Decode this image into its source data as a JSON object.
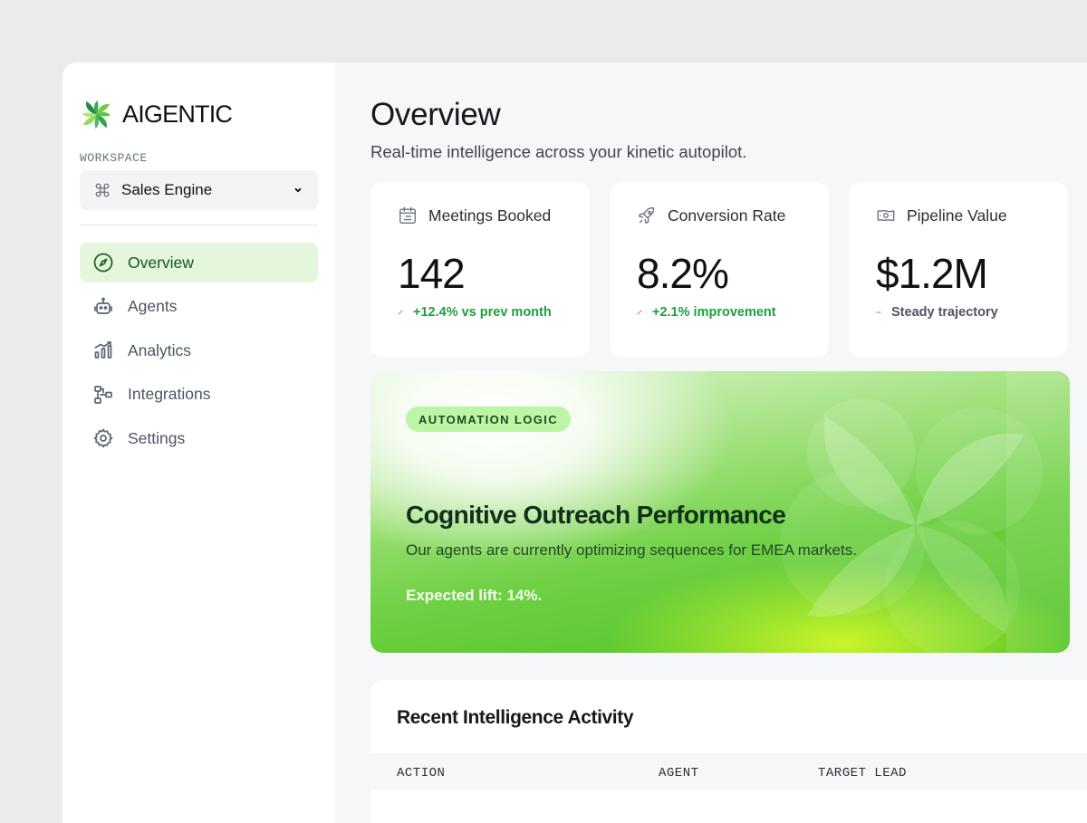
{
  "brand": {
    "name": "AIGENTIC",
    "logo_icon": "pinwheel-logo-icon"
  },
  "workspace": {
    "label": "WORKSPACE",
    "value": "Sales Engine",
    "icon": "command-icon"
  },
  "nav": [
    {
      "label": "Overview",
      "icon": "compass-icon",
      "active": true
    },
    {
      "label": "Agents",
      "icon": "robot-icon",
      "active": false
    },
    {
      "label": "Analytics",
      "icon": "bar-chart-icon",
      "active": false
    },
    {
      "label": "Integrations",
      "icon": "workflow-icon",
      "active": false
    },
    {
      "label": "Settings",
      "icon": "gear-icon",
      "active": false
    }
  ],
  "header": {
    "title": "Overview",
    "subtitle": "Real-time intelligence across your kinetic autopilot."
  },
  "stats": [
    {
      "label": "Meetings Booked",
      "icon": "calendar-icon",
      "value": "142",
      "delta": "+12.4% vs prev month",
      "trend": "up"
    },
    {
      "label": "Conversion Rate",
      "icon": "rocket-icon",
      "value": "8.2%",
      "delta": "+2.1% improvement",
      "trend": "up"
    },
    {
      "label": "Pipeline Value",
      "icon": "money-icon",
      "value": "$1.2M",
      "delta": "Steady trajectory",
      "trend": "flat"
    }
  ],
  "hero": {
    "badge": "AUTOMATION LOGIC",
    "title": "Cognitive Outreach Performance",
    "description": "Our agents are currently optimizing sequences for EMEA markets.",
    "lift": "Expected lift: 14%."
  },
  "activity": {
    "title": "Recent Intelligence Activity",
    "columns": [
      "ACTION",
      "AGENT",
      "TARGET LEAD"
    ]
  },
  "colors": {
    "accent": "#4cc21f",
    "active_nav_bg": "#e4f6dc",
    "delta_up": "#1e9e3e",
    "badge_bg": "#bdf5a6"
  }
}
